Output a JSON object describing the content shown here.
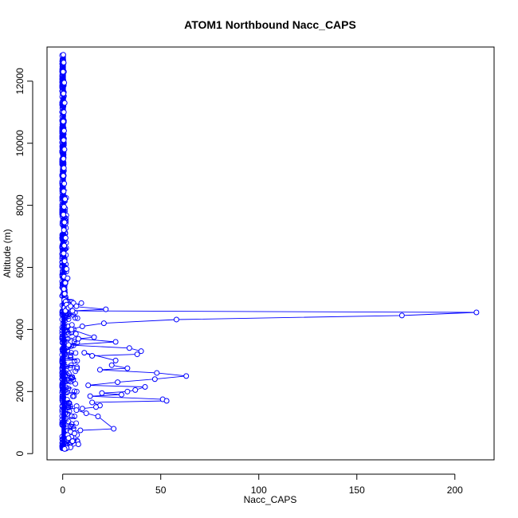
{
  "chart_data": {
    "type": "scatter",
    "title": "ATOM1 Northbound Nacc_CAPS",
    "xlabel": "Nacc_CAPS",
    "ylabel": "Altitude (m)",
    "xlim": [
      -8,
      220
    ],
    "ylim": [
      -200,
      13100
    ],
    "xticks": [
      0,
      50,
      100,
      150,
      200
    ],
    "xtick_labels": [
      "0",
      "50",
      "100",
      "150",
      "200"
    ],
    "yticks": [
      0,
      2000,
      4000,
      6000,
      8000,
      10000,
      12000
    ],
    "ytick_labels": [
      "0",
      "2000",
      "4000",
      "6000",
      "8000",
      "10000",
      "12000"
    ],
    "grid": false,
    "legend": "none",
    "series": [
      {
        "style": "points-connected-by-lines",
        "color": "#0000ff",
        "x": [
          0.3,
          0.5,
          0.2,
          0.8,
          0.4,
          1.0,
          0.6,
          0.3,
          0.7,
          0.5,
          0.9,
          0.4,
          0.6,
          0.3,
          0.8,
          0.5,
          1.2,
          0.7,
          0.4,
          0.9,
          0.6,
          1.5,
          0.8,
          0.5,
          1.0,
          2.0,
          0.7,
          1.3,
          0.6,
          2.5,
          1.0,
          0.8,
          1.5,
          3.0,
          1.2,
          0.9,
          2.0,
          1.4,
          5.5,
          2.0,
          7.0,
          3.0,
          9.5,
          4.0,
          22.0,
          5.0,
          211.0,
          173.0,
          58.0,
          21.0,
          10.0,
          4.5,
          16.0,
          8.0,
          27.0,
          3.0,
          34.0,
          40.0,
          38.0,
          15.0,
          11.0,
          27.0,
          25.0,
          33.0,
          19.0,
          48.0,
          63.0,
          47.0,
          28.0,
          13.0,
          42.0,
          37.0,
          33.0,
          20.0,
          30.0,
          14.0,
          51.0,
          53.0,
          15.0,
          19.0,
          17.0,
          10.0,
          7.0,
          12.0,
          18.0,
          26.0,
          9.0,
          4.0,
          6.0,
          2.5,
          3.0,
          5.0,
          8.0,
          4.0,
          2.0,
          1.0
        ],
        "y": [
          12850,
          12600,
          12300,
          11950,
          11600,
          11300,
          11000,
          10700,
          10400,
          10100,
          9800,
          9500,
          9200,
          8950,
          8700,
          8450,
          8200,
          7950,
          7700,
          7450,
          7200,
          6950,
          6700,
          6450,
          6200,
          5950,
          5700,
          5500,
          5300,
          5650,
          5150,
          4950,
          4900,
          4800,
          4750,
          4700,
          4650,
          4600,
          4850,
          4800,
          4750,
          4700,
          4850,
          4750,
          4650,
          4600,
          4550,
          4450,
          4320,
          4200,
          4100,
          4000,
          3750,
          3700,
          3600,
          3500,
          3400,
          3300,
          3200,
          3150,
          3250,
          3000,
          2850,
          2750,
          2700,
          2600,
          2500,
          2400,
          2300,
          2200,
          2150,
          2050,
          2000,
          1950,
          1900,
          1850,
          1750,
          1700,
          1650,
          1550,
          1500,
          1450,
          1400,
          1300,
          1200,
          800,
          750,
          700,
          650,
          600,
          500,
          400,
          300,
          200,
          180,
          150
        ]
      }
    ],
    "dense_near_zero_band": {
      "x_range": [
        -0.5,
        9
      ],
      "y_range": [
        150,
        12850
      ]
    }
  }
}
